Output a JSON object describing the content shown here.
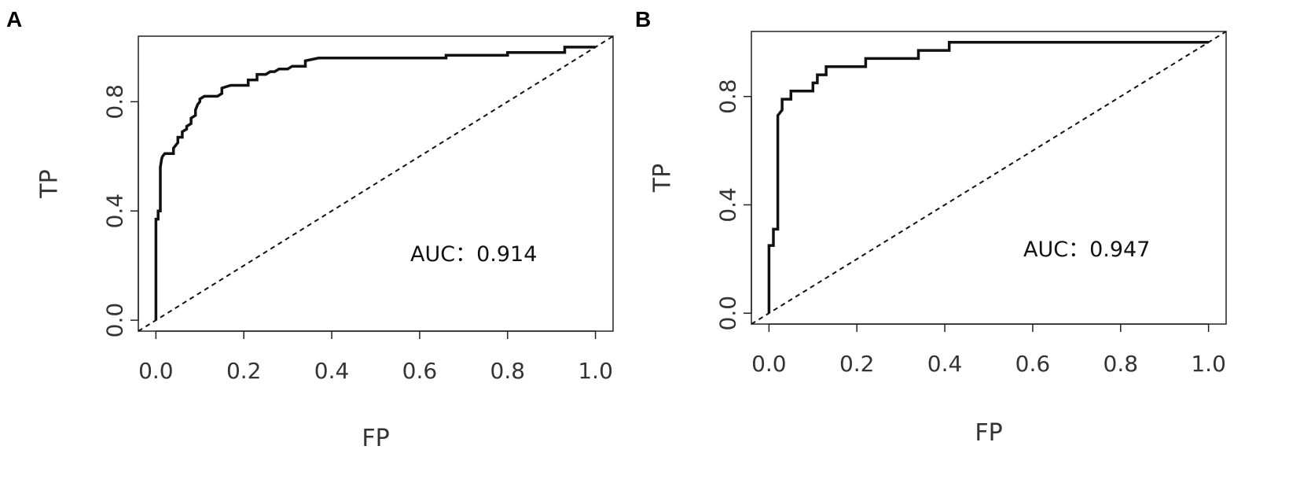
{
  "chart_data": [
    {
      "type": "line",
      "panel": "A",
      "xlabel": "FP",
      "ylabel": "TP",
      "xlim": [
        -0.04,
        1.04
      ],
      "ylim": [
        -0.04,
        1.04
      ],
      "xticks": [
        "0.0",
        "0.2",
        "0.4",
        "0.6",
        "0.8",
        "1.0"
      ],
      "yticks": [
        "0.0",
        "0.4",
        "0.8"
      ],
      "annotation": "AUC：0.914",
      "series": [
        {
          "style": "solid",
          "x": [
            0,
            0,
            0.005,
            0.005,
            0.01,
            0.01,
            0.013,
            0.015,
            0.02,
            0.03,
            0.04,
            0.04,
            0.05,
            0.05,
            0.06,
            0.06,
            0.07,
            0.07,
            0.08,
            0.08,
            0.09,
            0.09,
            0.095,
            0.1,
            0.1,
            0.11,
            0.14,
            0.15,
            0.15,
            0.17,
            0.2,
            0.21,
            0.21,
            0.23,
            0.23,
            0.25,
            0.26,
            0.27,
            0.28,
            0.3,
            0.31,
            0.34,
            0.34,
            0.37,
            0.66,
            0.66,
            0.8,
            0.8,
            0.93,
            0.93,
            1.0
          ],
          "y": [
            0,
            0.37,
            0.37,
            0.4,
            0.4,
            0.56,
            0.59,
            0.6,
            0.61,
            0.61,
            0.61,
            0.63,
            0.65,
            0.67,
            0.67,
            0.69,
            0.7,
            0.71,
            0.72,
            0.74,
            0.75,
            0.77,
            0.79,
            0.8,
            0.81,
            0.82,
            0.82,
            0.83,
            0.85,
            0.86,
            0.86,
            0.86,
            0.88,
            0.88,
            0.9,
            0.9,
            0.91,
            0.91,
            0.92,
            0.92,
            0.93,
            0.93,
            0.95,
            0.96,
            0.96,
            0.97,
            0.97,
            0.98,
            0.98,
            1.0,
            1.0
          ]
        },
        {
          "style": "dashed",
          "x": [
            -0.04,
            1.04
          ],
          "y": [
            -0.04,
            1.04
          ]
        }
      ]
    },
    {
      "type": "line",
      "panel": "B",
      "xlabel": "FP",
      "ylabel": "TP",
      "xlim": [
        -0.04,
        1.04
      ],
      "ylim": [
        -0.04,
        1.04
      ],
      "xticks": [
        "0.0",
        "0.2",
        "0.4",
        "0.6",
        "0.8",
        "1.0"
      ],
      "yticks": [
        "0.0",
        "0.4",
        "0.8"
      ],
      "annotation": "AUC：0.947",
      "series": [
        {
          "style": "solid",
          "x": [
            0,
            0,
            0.01,
            0.01,
            0.02,
            0.02,
            0.03,
            0.03,
            0.05,
            0.05,
            0.1,
            0.1,
            0.11,
            0.11,
            0.13,
            0.13,
            0.22,
            0.22,
            0.34,
            0.34,
            0.41,
            0.41,
            1.0
          ],
          "y": [
            0,
            0.25,
            0.25,
            0.31,
            0.31,
            0.73,
            0.75,
            0.79,
            0.79,
            0.82,
            0.82,
            0.85,
            0.85,
            0.88,
            0.88,
            0.91,
            0.91,
            0.94,
            0.94,
            0.97,
            0.97,
            1.0,
            1.0
          ]
        },
        {
          "style": "dashed",
          "x": [
            -0.04,
            1.04
          ],
          "y": [
            -0.04,
            1.04
          ]
        }
      ]
    }
  ]
}
